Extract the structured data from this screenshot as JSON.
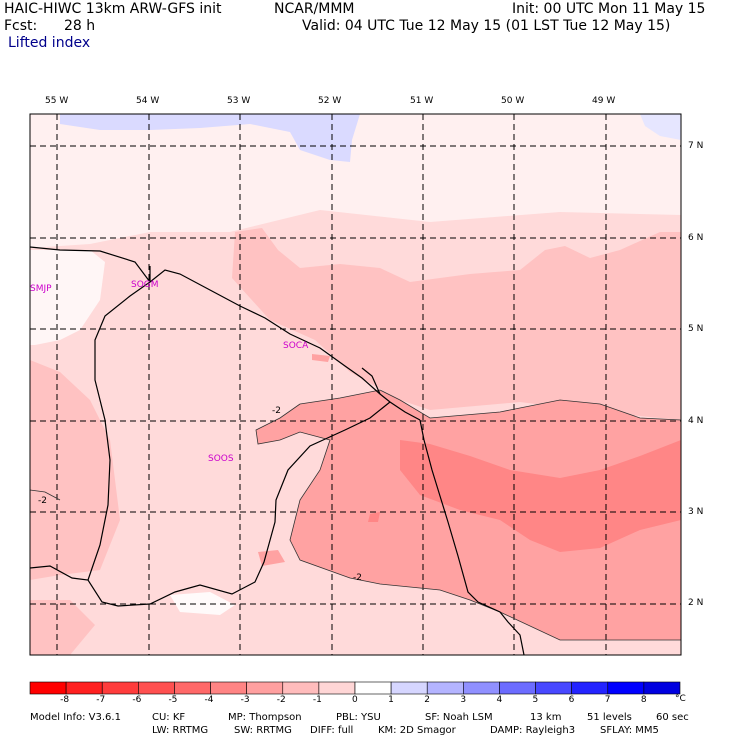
{
  "header": {
    "model_title": "HAIC-HIWC 13km ARW-GFS init",
    "org": "NCAR/MMM",
    "init": "Init: 00 UTC Mon 11 May 15",
    "fcst_label": "Fcst:",
    "fcst_value": "28 h",
    "valid": "Valid: 04 UTC Tue 12 May 15 (01 LST Tue 12 May 15)",
    "field": "Lifted index"
  },
  "map": {
    "lon_labels": [
      "55 W",
      "54 W",
      "53 W",
      "52 W",
      "51 W",
      "50 W",
      "49 W"
    ],
    "lat_labels": [
      "7 N",
      "6 N",
      "5 N",
      "4 N",
      "3 N",
      "2 N"
    ],
    "stations": [
      "SMJP",
      "SOGM",
      "SOCA",
      "SOOS"
    ],
    "contour_labels": [
      "-2",
      "-2",
      "-2"
    ]
  },
  "legend": {
    "ticks": [
      "-8",
      "-7",
      "-6",
      "-5",
      "-4",
      "-3",
      "-2",
      "-1",
      "0",
      "1",
      "2",
      "3",
      "4",
      "5",
      "6",
      "7",
      "8"
    ],
    "unit": "°C",
    "colors": [
      "#ff0000",
      "#ff2020",
      "#ff3c3c",
      "#ff5050",
      "#ff6868",
      "#ff8484",
      "#ffa0a0",
      "#ffbcbc",
      "#ffd6d6",
      "#ffffff",
      "#d6d6ff",
      "#b4b4ff",
      "#9090ff",
      "#6c6cff",
      "#4848ff",
      "#2424ff",
      "#0000ff",
      "#0000e0"
    ]
  },
  "footer": {
    "line1": [
      "Model Info: V3.6.1",
      "CU: KF",
      "MP: Thompson",
      "PBL: YSU",
      "SF: Noah LSM",
      "13 km",
      "51 levels",
      "60 sec"
    ],
    "line2": [
      "LW: RRTMG",
      "SW: RRTMG",
      "DIFF: full",
      "KM: 2D Smagor",
      "DAMP: Rayleigh3",
      "SFLAY: MM5"
    ]
  }
}
